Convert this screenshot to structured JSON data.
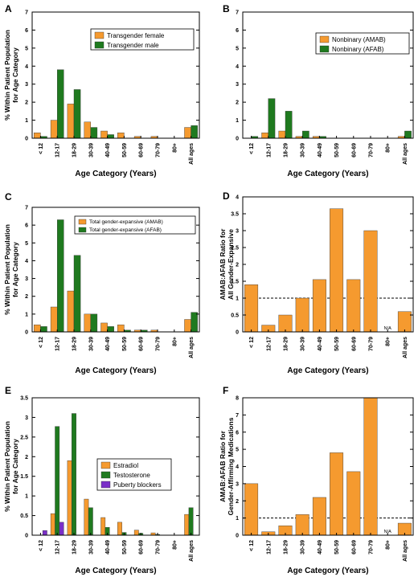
{
  "colors": {
    "orange": "#F59A2F",
    "green": "#1F7A1F",
    "purple": "#7A2FC8",
    "bar_edge": "#333333"
  },
  "chart_data": [
    {
      "panel": "A",
      "type": "bar",
      "categories": [
        "< 12",
        "12-17",
        "18-29",
        "30-39",
        "40-49",
        "50-59",
        "60-69",
        "70-79",
        "80+",
        "All ages"
      ],
      "series": [
        {
          "name": "Transgender female",
          "color": "orange",
          "values": [
            0.3,
            1.0,
            1.9,
            0.9,
            0.4,
            0.3,
            0.1,
            0.1,
            0,
            0.6
          ]
        },
        {
          "name": "Transgender male",
          "color": "green",
          "values": [
            0.1,
            3.8,
            2.7,
            0.6,
            0.2,
            0,
            0,
            0,
            0,
            0.7
          ]
        }
      ],
      "ylabel": [
        "% Within Patient Population",
        "for Age Category"
      ],
      "xlabel": "Age Category (Years)",
      "ylim": [
        0,
        7
      ],
      "yticks": [
        "0",
        "1",
        "2",
        "3",
        "4",
        "5",
        "6",
        "7"
      ],
      "legend": "top-right",
      "grid": false
    },
    {
      "panel": "B",
      "type": "bar",
      "categories": [
        "< 12",
        "12-17",
        "18-29",
        "30-39",
        "40-49",
        "50-59",
        "60-69",
        "70-79",
        "80+",
        "All ages"
      ],
      "series": [
        {
          "name": "Nonbinary (AMAB)",
          "color": "orange",
          "values": [
            0,
            0.3,
            0.4,
            0.1,
            0.1,
            0,
            0,
            0,
            0,
            0.1
          ]
        },
        {
          "name": "Nonbinary (AFAB)",
          "color": "green",
          "values": [
            0.1,
            2.2,
            1.5,
            0.4,
            0.1,
            0,
            0,
            0,
            0,
            0.4
          ]
        }
      ],
      "xlabel": "Age Category (Years)",
      "ylim": [
        0,
        7
      ],
      "yticks": [
        "0",
        "1",
        "2",
        "3",
        "4",
        "5",
        "6",
        "7"
      ],
      "legend": "top-right",
      "grid": false
    },
    {
      "panel": "C",
      "type": "bar",
      "categories": [
        "< 12",
        "12-17",
        "18-29",
        "30-39",
        "40-49",
        "50-59",
        "60-69",
        "70-79",
        "80+",
        "All ages"
      ],
      "series": [
        {
          "name": "Total gender-expansive (AMAB)",
          "color": "orange",
          "values": [
            0.4,
            1.4,
            2.3,
            1.0,
            0.5,
            0.4,
            0.1,
            0.1,
            0,
            0.7
          ]
        },
        {
          "name": "Total gender-expansive (AFAB)",
          "color": "green",
          "values": [
            0.3,
            6.3,
            4.3,
            1.0,
            0.3,
            0.1,
            0.1,
            0,
            0,
            1.1
          ]
        }
      ],
      "ylabel": [
        "% Within Patient Population",
        "for Age Category"
      ],
      "xlabel": "Age Category (Years)",
      "ylim": [
        0,
        7
      ],
      "yticks": [
        "0",
        "1",
        "2",
        "3",
        "4",
        "5",
        "6",
        "7"
      ],
      "legend": "top-right",
      "grid": false
    },
    {
      "panel": "D",
      "type": "bar",
      "categories": [
        "< 12",
        "12-17",
        "18-29",
        "30-39",
        "40-49",
        "50-59",
        "60-69",
        "70-79",
        "80+",
        "All ages"
      ],
      "series": [
        {
          "color": "orange",
          "values": [
            1.4,
            0.2,
            0.5,
            1.0,
            1.55,
            3.65,
            1.55,
            3.0,
            null,
            0.6
          ]
        }
      ],
      "annotations": [
        {
          "category": "80+",
          "text": "N/A"
        }
      ],
      "reference_line": 1,
      "ylabel": [
        "AMAB:AFAB Ratio for",
        "All Gender-Expansive"
      ],
      "xlabel": "Age Category (Years)",
      "ylim": [
        0,
        4
      ],
      "yticks": [
        "0",
        "0.5",
        "1",
        "1.5",
        "2",
        "2.5",
        "3",
        "3.5",
        "4"
      ],
      "grid": false
    },
    {
      "panel": "E",
      "type": "bar",
      "categories": [
        "< 12",
        "12-17",
        "18-29",
        "30-39",
        "40-49",
        "50-59",
        "60-69",
        "70-79",
        "80+",
        "All ages"
      ],
      "series": [
        {
          "name": "Estradiol",
          "color": "orange",
          "values": [
            0,
            0.55,
            1.9,
            0.92,
            0.45,
            0.33,
            0.13,
            0.06,
            0,
            0.53
          ]
        },
        {
          "name": "Testosterone",
          "color": "green",
          "values": [
            0,
            2.77,
            3.1,
            0.7,
            0.2,
            0.07,
            0.05,
            0.02,
            0,
            0.7
          ]
        },
        {
          "name": "Puberty blockers",
          "color": "purple",
          "values": [
            0.12,
            0.33,
            0,
            0,
            0,
            0,
            0,
            0,
            0,
            0
          ]
        }
      ],
      "ylabel": [
        "% Within Patient Population",
        "for Age Category"
      ],
      "xlabel": "Age Category (Years)",
      "ylim": [
        0,
        3.5
      ],
      "yticks": [
        "0",
        "0.5",
        "1",
        "1.5",
        "2",
        "2.5",
        "3",
        "3.5"
      ],
      "legend": "center-right",
      "grid": false
    },
    {
      "panel": "F",
      "type": "bar",
      "categories": [
        "< 12",
        "12-17",
        "18-29",
        "30-39",
        "40-49",
        "50-59",
        "60-69",
        "70-79",
        "80+",
        "All ages"
      ],
      "series": [
        {
          "color": "orange",
          "values": [
            3.0,
            0.2,
            0.55,
            1.2,
            2.2,
            4.8,
            3.7,
            8.0,
            null,
            0.7
          ]
        }
      ],
      "annotations": [
        {
          "category": "80+",
          "text": "N/A"
        }
      ],
      "reference_line": 1,
      "ylabel": [
        "AMAB:AFAB Ratio for",
        "Gender-Affirming Medications"
      ],
      "xlabel": "Age Category (Years)",
      "ylim": [
        0,
        8
      ],
      "yticks": [
        "0",
        "1",
        "2",
        "3",
        "4",
        "5",
        "6",
        "7",
        "8"
      ],
      "grid": false
    }
  ]
}
